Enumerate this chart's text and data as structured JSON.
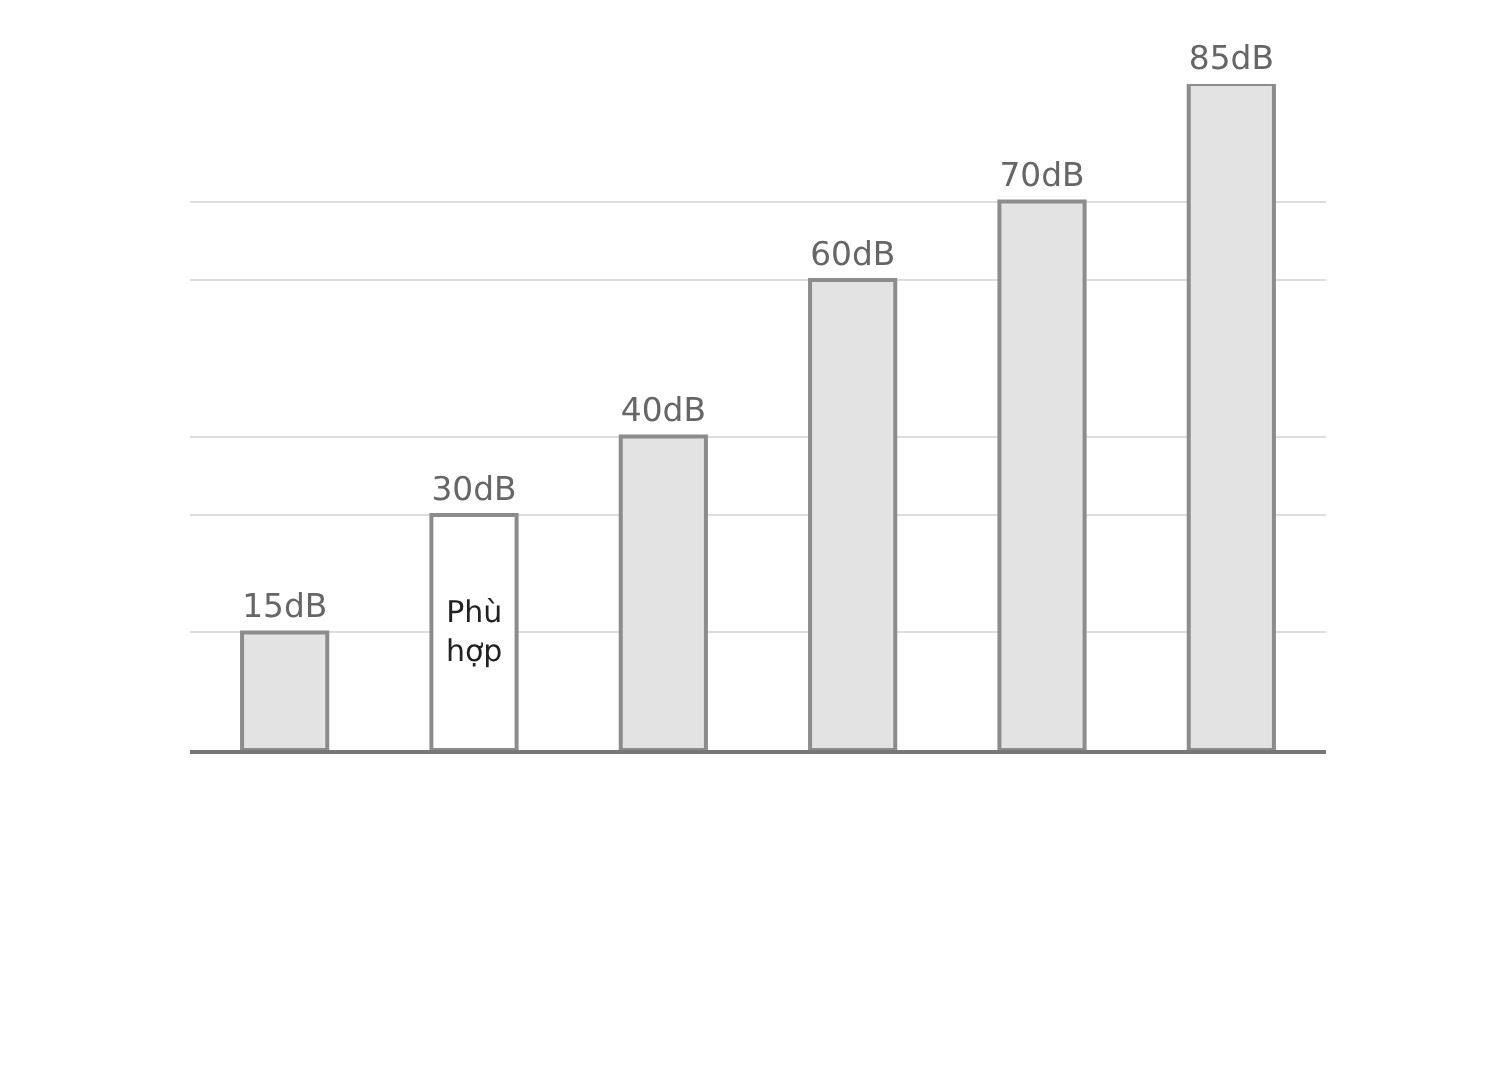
{
  "chart_data": {
    "type": "bar",
    "categories": [
      null,
      null,
      null,
      null,
      null,
      null
    ],
    "values": [
      15,
      30,
      40,
      60,
      70,
      85
    ],
    "colors": [
      "#e3e3e3",
      "#ffffff",
      "#e3e3e3",
      "#e3e3e3",
      "#e3e3e3",
      "#e3e3e3"
    ],
    "value_labels": [
      "15dB",
      "30dB",
      "40dB",
      "60dB",
      "70dB",
      "85dB"
    ],
    "annotations": [
      "Phù hợp"
    ],
    "grid": "y",
    "legend": false,
    "tick_labels": false
  }
}
